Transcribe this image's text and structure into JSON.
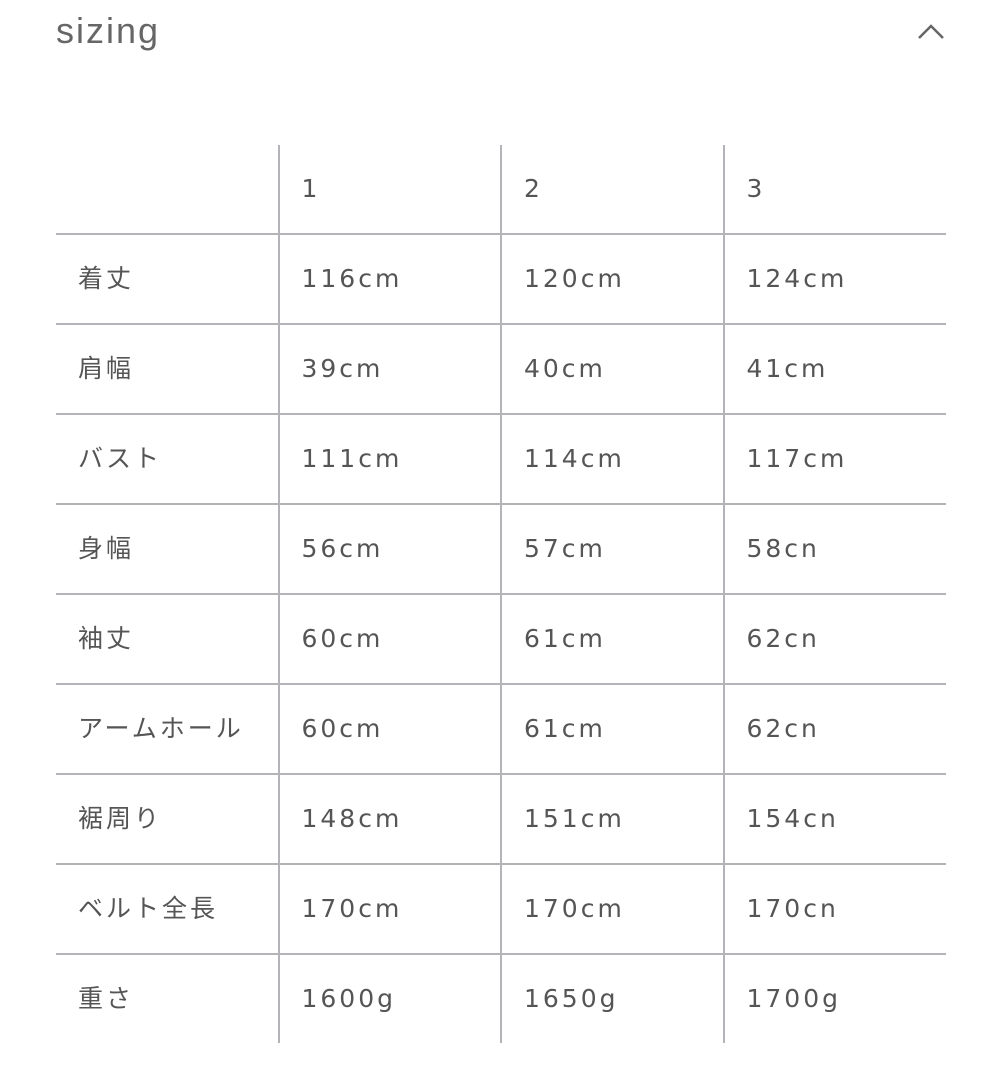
{
  "section": {
    "title": "sizing",
    "toggle_icon": "chevron-up-icon",
    "expanded": true
  },
  "table": {
    "columns": [
      "",
      "1",
      "2",
      "3"
    ],
    "rows": [
      {
        "label": "着丈",
        "values": [
          "116cm",
          "120cm",
          "124cm"
        ]
      },
      {
        "label": "肩幅",
        "values": [
          "39cm",
          "40cm",
          "41cm"
        ]
      },
      {
        "label": "バスト",
        "values": [
          "111cm",
          "114cm",
          "117cm"
        ]
      },
      {
        "label": "身幅",
        "values": [
          "56cm",
          "57cm",
          "58cn"
        ]
      },
      {
        "label": "袖丈",
        "values": [
          "60cm",
          "61cm",
          "62cn"
        ]
      },
      {
        "label": "アームホール",
        "values": [
          "60cm",
          "61cm",
          "62cn"
        ]
      },
      {
        "label": "裾周り",
        "values": [
          "148cm",
          "151cm",
          "154cn"
        ]
      },
      {
        "label": "ベルト全長",
        "values": [
          "170cm",
          "170cm",
          "170cn"
        ]
      },
      {
        "label": "重さ",
        "values": [
          "1600g",
          "1650g",
          "1700g"
        ]
      }
    ]
  },
  "colors": {
    "text": "#555555",
    "grid": "#b4b4b8"
  }
}
